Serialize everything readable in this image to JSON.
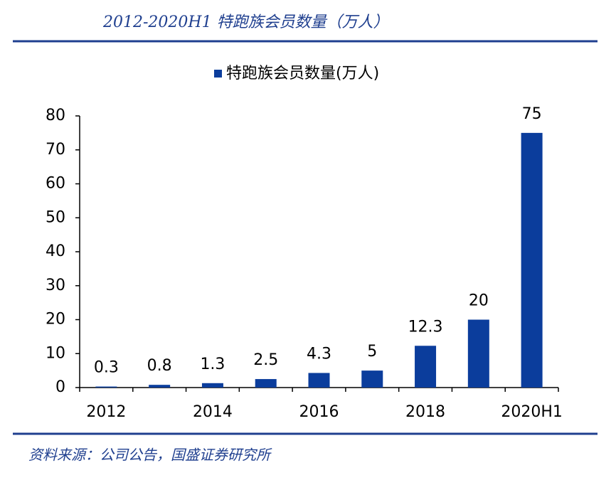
{
  "chart_data": {
    "type": "bar",
    "title": "2012-2020H1 特跑族会员数量（万人）",
    "source": "资料来源：公司公告，国盛证券研究所",
    "categories": [
      "2012",
      null,
      "2014",
      null,
      "2016",
      null,
      "2018",
      null,
      "2020H1"
    ],
    "series": [
      {
        "name": "特跑族会员数量(万人)",
        "color": "#0b3d9c",
        "values": [
          0.3,
          0.8,
          1.3,
          2.5,
          4.3,
          5,
          12.3,
          20,
          75
        ]
      }
    ],
    "ylim": [
      0,
      80
    ],
    "yticks": [
      0,
      10,
      20,
      30,
      40,
      50,
      60,
      70,
      80
    ],
    "grid": false,
    "legend": "top"
  }
}
